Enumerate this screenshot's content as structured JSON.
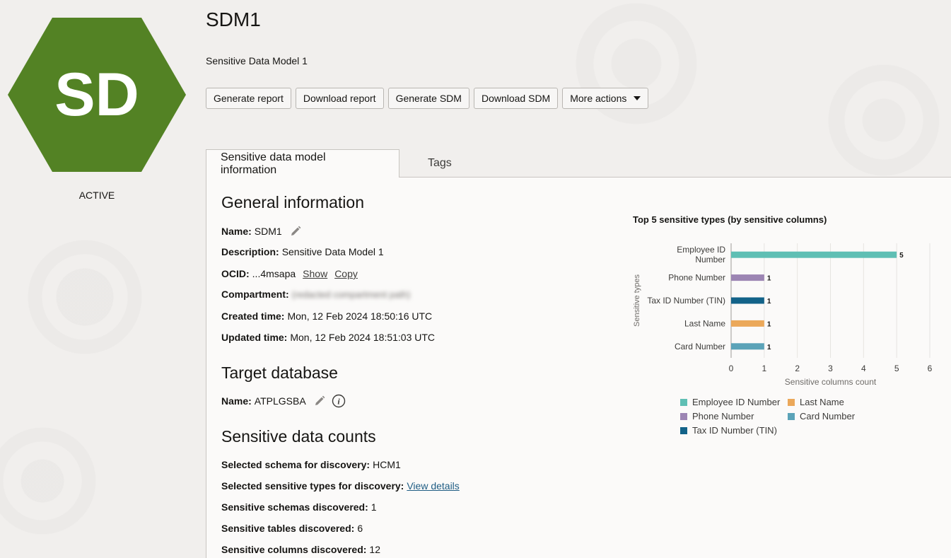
{
  "badge": {
    "initials": "SD",
    "color": "#538224",
    "status": "ACTIVE"
  },
  "header": {
    "title": "SDM1",
    "subtitle": "Sensitive Data Model 1",
    "actions": [
      "Generate report",
      "Download report",
      "Generate SDM",
      "Download SDM",
      "More actions"
    ]
  },
  "tabs": [
    "Sensitive data model information",
    "Tags"
  ],
  "general": {
    "heading": "General information",
    "name_label": "Name:",
    "name_value": "SDM1",
    "description_label": "Description:",
    "description_value": "Sensitive Data Model 1",
    "ocid_label": "OCID:",
    "ocid_value": "...4msapa",
    "show_link": "Show",
    "copy_link": "Copy",
    "compartment_label": "Compartment:",
    "compartment_value": "(redacted compartment path)",
    "created_label": "Created time:",
    "created_value": "Mon, 12 Feb 2024 18:50:16 UTC",
    "updated_label": "Updated time:",
    "updated_value": "Mon, 12 Feb 2024 18:51:03 UTC"
  },
  "target": {
    "heading": "Target database",
    "name_label": "Name:",
    "name_value": "ATPLGSBA"
  },
  "counts": {
    "heading": "Sensitive data counts",
    "schema_label": "Selected schema for discovery:",
    "schema_value": "HCM1",
    "types_label": "Selected sensitive types for discovery:",
    "types_link": "View details",
    "schemas_label": "Sensitive schemas discovered:",
    "schemas_value": "1",
    "tables_label": "Sensitive tables discovered:",
    "tables_value": "6",
    "columns_label": "Sensitive columns discovered:",
    "columns_value": "12"
  },
  "chart_data": {
    "type": "bar",
    "orientation": "horizontal",
    "title": "Top 5 sensitive types (by sensitive columns)",
    "categories": [
      "Employee ID Number",
      "Phone Number",
      "Tax ID Number (TIN)",
      "Last Name",
      "Card Number"
    ],
    "category_labels": [
      [
        "Employee ID",
        "Number"
      ],
      [
        "Phone Number"
      ],
      [
        "Tax ID Number (TIN)"
      ],
      [
        "Last Name"
      ],
      [
        "Card Number"
      ]
    ],
    "values": [
      5,
      1,
      1,
      1,
      1
    ],
    "colors": [
      "#5fbfb4",
      "#9c85b3",
      "#136389",
      "#eba85a",
      "#5ba3b8"
    ],
    "xlabel": "Sensitive columns count",
    "ylabel": "Sensitive types",
    "xlim": [
      0,
      6
    ],
    "xticks": [
      0,
      1,
      2,
      3,
      4,
      5,
      6
    ],
    "grid": true,
    "legend_position": "bottom",
    "legend": [
      {
        "name": "Employee ID Number",
        "color": "#5fbfb4"
      },
      {
        "name": "Last Name",
        "color": "#eba85a"
      },
      {
        "name": "Phone Number",
        "color": "#9c85b3"
      },
      {
        "name": "Card Number",
        "color": "#5ba3b8"
      },
      {
        "name": "Tax ID Number (TIN)",
        "color": "#136389"
      }
    ]
  }
}
